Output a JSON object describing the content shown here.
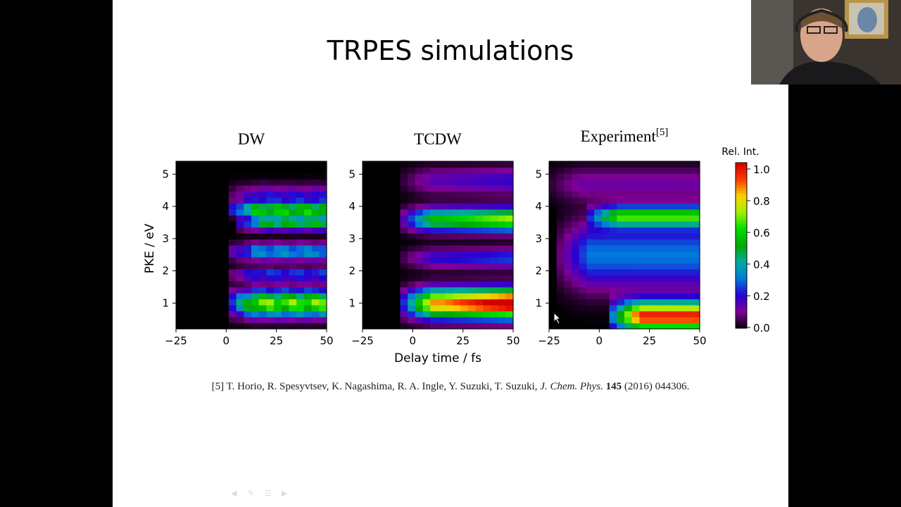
{
  "slide": {
    "title": "TRPES simulations",
    "citation": {
      "prefix": "[5] T. Horio, R. Spesyvtsev, K. Nagashima, R. A. Ingle, Y. Suzuki, T. Suzuki, ",
      "journal": "J. Chem. Phys.",
      "volume": "145",
      "rest": " (2016) 044306."
    }
  },
  "chart_data": [
    {
      "type": "heatmap",
      "title": "DW",
      "xlabel": "",
      "ylabel": "PKE / eV",
      "xlim": [
        -25,
        50
      ],
      "ylim": [
        0.2,
        5.4
      ],
      "x_ticks": [
        -25,
        0,
        25,
        50
      ],
      "y_ticks": [
        1,
        2,
        3,
        4,
        5
      ],
      "colormap": "nipy_spectral",
      "bands": [
        {
          "pke": 4.3,
          "width": 0.35,
          "intensity": 0.2,
          "onset": 0
        },
        {
          "pke": 3.9,
          "width": 0.18,
          "intensity": 0.55,
          "onset": 0
        },
        {
          "pke": 3.5,
          "width": 0.22,
          "intensity": 0.5,
          "onset": 5
        },
        {
          "pke": 2.6,
          "width": 0.25,
          "intensity": 0.35,
          "onset": 0
        },
        {
          "pke": 1.9,
          "width": 0.2,
          "intensity": 0.25,
          "onset": 0
        },
        {
          "pke": 1.0,
          "width": 0.4,
          "intensity": 0.65,
          "onset": 0
        }
      ]
    },
    {
      "type": "heatmap",
      "title": "TCDW",
      "xlabel": "Delay time / fs",
      "ylabel": "",
      "xlim": [
        -25,
        50
      ],
      "ylim": [
        0.2,
        5.4
      ],
      "x_ticks": [
        -25,
        0,
        25,
        50
      ],
      "y_ticks": [
        1,
        2,
        3,
        4,
        5
      ],
      "colormap": "nipy_spectral",
      "bands": [
        {
          "pke": 4.8,
          "width": 0.4,
          "intensity": 0.15,
          "onset": -5
        },
        {
          "pke": 3.6,
          "width": 0.35,
          "intensity": 0.55,
          "onset": -5
        },
        {
          "pke": 2.4,
          "width": 0.3,
          "intensity": 0.2,
          "onset": -5
        },
        {
          "pke": 1.0,
          "width": 0.45,
          "intensity": 0.85,
          "onset": -5
        }
      ]
    },
    {
      "type": "heatmap",
      "title": "Experiment",
      "title_superscript": "[5]",
      "xlabel": "",
      "ylabel": "",
      "xlim": [
        -25,
        50
      ],
      "ylim": [
        0.2,
        5.4
      ],
      "x_ticks": [
        -25,
        0,
        25,
        50
      ],
      "y_ticks": [
        1,
        2,
        3,
        4,
        5
      ],
      "colormap": "nipy_spectral",
      "colorbar": {
        "label": "Rel. Int.",
        "ticks": [
          "0.0",
          "0.2",
          "0.4",
          "0.6",
          "0.8",
          "1.0"
        ],
        "range": [
          0,
          1
        ]
      },
      "bands": [
        {
          "pke": 4.7,
          "width": 0.5,
          "intensity": 0.12,
          "onset": -25
        },
        {
          "pke": 3.7,
          "width": 0.3,
          "intensity": 0.58,
          "onset": -5
        },
        {
          "pke": 2.5,
          "width": 1.0,
          "intensity": 0.3,
          "onset": -20
        },
        {
          "pke": 0.6,
          "width": 0.45,
          "intensity": 0.95,
          "onset": 5
        }
      ]
    }
  ]
}
